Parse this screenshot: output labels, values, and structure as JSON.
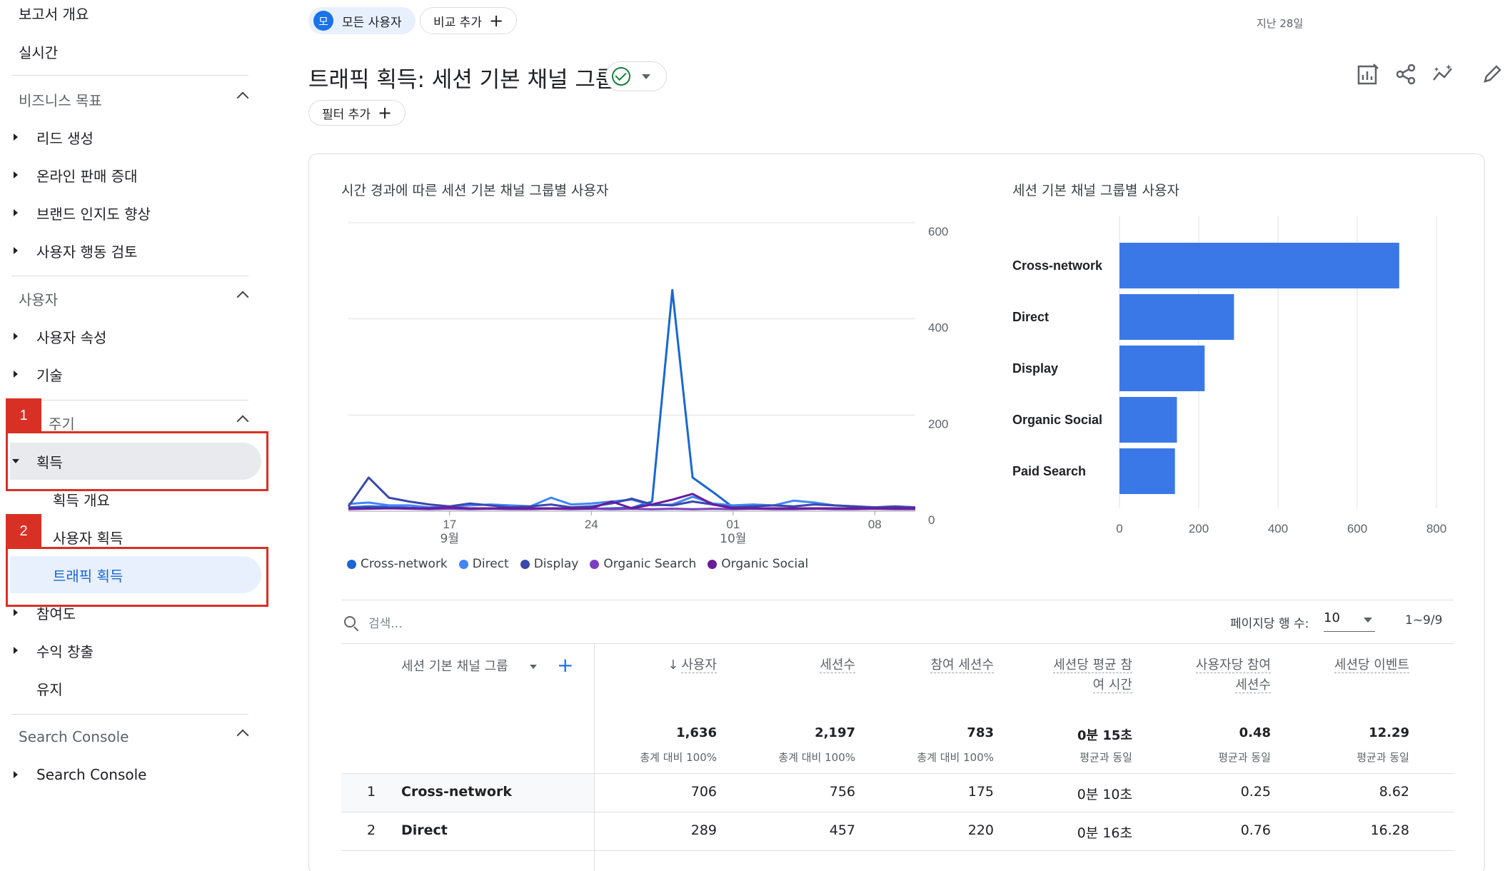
{
  "sidebar": {
    "report_overview": "보고서 개요",
    "realtime": "실시간",
    "sections": [
      {
        "title": "비즈니스 목표",
        "items": [
          "리드 생성",
          "온라인 판매 증대",
          "브랜드 인지도 향상",
          "사용자 행동 검토"
        ]
      },
      {
        "title": "사용자",
        "items": [
          "사용자 속성",
          "기술"
        ]
      },
      {
        "title": "수명 주기",
        "visible_title": "주기",
        "items": [
          "획득",
          "참여도",
          "수익 창출",
          "유지"
        ],
        "sub_items": [
          "획득 개요",
          "사용자 획득",
          "트래픽 획득"
        ]
      },
      {
        "title": "Search Console",
        "items": [
          "Search Console"
        ]
      }
    ],
    "annotations": [
      "1",
      "2"
    ]
  },
  "topbar": {
    "segment_avatar": "모",
    "segment_label": "모든 사용자",
    "compare_label": "비교 추가",
    "date_range": "지난 28일"
  },
  "page": {
    "title": "트래픽 획득: 세션 기본 채널 그룹",
    "filter_label": "필터 추가"
  },
  "line_chart": {
    "title": "시간 경과에 따른 세션 기본 채널 그룹별 사용자",
    "y_ticks": [
      "600",
      "400",
      "200",
      "0"
    ],
    "x_ticks": [
      {
        "label": "17",
        "sub": "9월"
      },
      {
        "label": "24",
        "sub": ""
      },
      {
        "label": "01",
        "sub": "10월"
      },
      {
        "label": "08",
        "sub": ""
      }
    ],
    "legend": [
      "Cross-network",
      "Direct",
      "Display",
      "Organic Search",
      "Organic Social"
    ]
  },
  "bar_chart": {
    "title": "세션 기본 채널 그룹별 사용자",
    "x_ticks": [
      "0",
      "200",
      "400",
      "600",
      "800"
    ]
  },
  "chart_data": [
    {
      "type": "line",
      "title": "시간 경과에 따른 세션 기본 채널 그룹별 사용자",
      "ylim": [
        0,
        600
      ],
      "x": [
        "9/12",
        "9/13",
        "9/14",
        "9/15",
        "9/16",
        "9/17",
        "9/18",
        "9/19",
        "9/20",
        "9/21",
        "9/22",
        "9/23",
        "9/24",
        "9/25",
        "9/26",
        "9/27",
        "9/28",
        "9/29",
        "9/30",
        "10/1",
        "10/2",
        "10/3",
        "10/4",
        "10/5",
        "10/6",
        "10/7",
        "10/8",
        "10/9",
        "10/10"
      ],
      "series": [
        {
          "name": "Cross-network",
          "color": "#1967d2",
          "values": [
            8,
            10,
            9,
            7,
            6,
            6,
            5,
            5,
            6,
            5,
            6,
            5,
            5,
            6,
            7,
            20,
            460,
            70,
            40,
            8,
            6,
            5,
            5,
            5,
            6,
            5,
            5,
            5,
            5
          ]
        },
        {
          "name": "Direct",
          "color": "#4285f4",
          "values": [
            15,
            18,
            12,
            12,
            8,
            10,
            12,
            14,
            12,
            10,
            28,
            14,
            16,
            20,
            24,
            12,
            14,
            30,
            16,
            12,
            14,
            12,
            22,
            18,
            12,
            10,
            8,
            8,
            6
          ]
        },
        {
          "name": "Display",
          "color": "#3949ab",
          "values": [
            10,
            70,
            28,
            20,
            14,
            10,
            16,
            12,
            8,
            10,
            14,
            8,
            10,
            16,
            26,
            14,
            12,
            20,
            14,
            8,
            10,
            12,
            10,
            14,
            12,
            10,
            8,
            10,
            8
          ]
        },
        {
          "name": "Organic Search",
          "color": "#7b3fbf",
          "values": [
            4,
            5,
            6,
            5,
            4,
            5,
            4,
            5,
            4,
            4,
            5,
            4,
            5,
            4,
            5,
            4,
            5,
            4,
            5,
            4,
            5,
            4,
            4,
            5,
            4,
            4,
            5,
            4,
            4
          ]
        },
        {
          "name": "Organic Social",
          "color": "#6a1b9a",
          "values": [
            6,
            6,
            6,
            6,
            6,
            8,
            6,
            6,
            6,
            6,
            6,
            6,
            6,
            20,
            6,
            14,
            24,
            36,
            14,
            6,
            6,
            6,
            6,
            6,
            6,
            6,
            6,
            6,
            6
          ]
        }
      ]
    },
    {
      "type": "bar",
      "title": "세션 기본 채널 그룹별 사용자",
      "categories": [
        "Cross-network",
        "Direct",
        "Display",
        "Organic Social",
        "Paid Search"
      ],
      "values": [
        706,
        289,
        215,
        145,
        140
      ],
      "xlim": [
        0,
        800
      ],
      "color": "#3b78e7"
    }
  ],
  "table": {
    "search_placeholder": "검색...",
    "rows_per_page_label": "페이지당 행 수:",
    "rows_per_page": "10",
    "pager": "1~9/9",
    "dimension_header": "세션 기본 채널 그룹",
    "columns": [
      {
        "label": "사용자",
        "total": "1,636",
        "sub": "총계 대비 100%"
      },
      {
        "label": "세션수",
        "total": "2,197",
        "sub": "총계 대비 100%"
      },
      {
        "label": "참여 세션수",
        "total": "783",
        "sub": "총계 대비 100%"
      },
      {
        "label": "세션당 평균 참",
        "label2": "여 시간",
        "total": "0분 15초",
        "sub": "평균과 동일"
      },
      {
        "label": "사용자당 참여",
        "label2": "세션수",
        "total": "0.48",
        "sub": "평균과 동일"
      },
      {
        "label": "세션당 이벤트",
        "total": "12.29",
        "sub": "평균과 동일"
      }
    ],
    "rows": [
      {
        "index": "1",
        "name": "Cross-network",
        "values": [
          "706",
          "756",
          "175",
          "0분 10초",
          "0.25",
          "8.62"
        ]
      },
      {
        "index": "2",
        "name": "Direct",
        "values": [
          "289",
          "457",
          "220",
          "0분 16초",
          "0.76",
          "16.28"
        ]
      }
    ]
  }
}
